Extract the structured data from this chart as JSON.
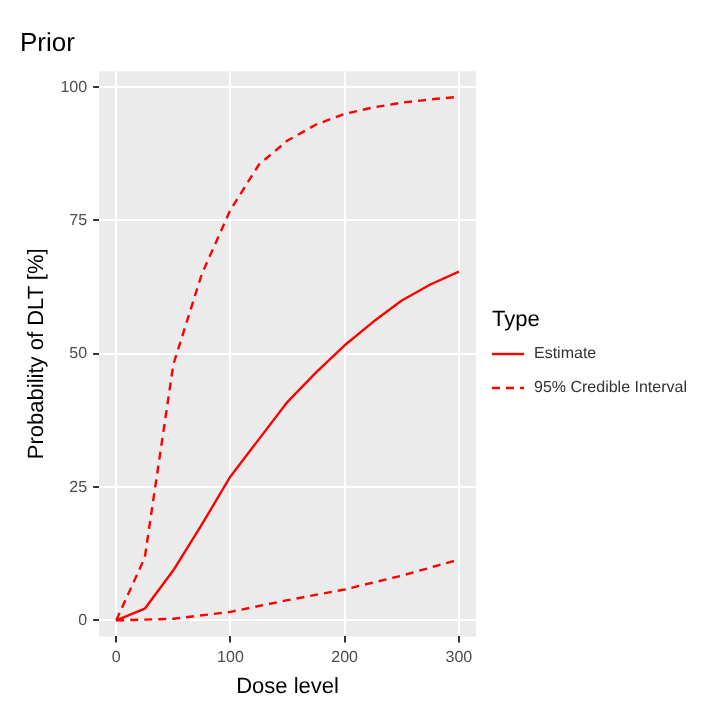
{
  "chart_data": {
    "type": "line",
    "title": "Prior",
    "xlabel": "Dose level",
    "ylabel": "Probability of DLT [%]",
    "legend_title": "Type",
    "legend": "right",
    "grid": true,
    "marker": "none",
    "xlim": [
      -15,
      315
    ],
    "xticks": [
      0,
      100,
      200,
      300
    ],
    "ylim": [
      -3,
      103
    ],
    "yticks": [
      0,
      25,
      50,
      75,
      100
    ],
    "series": [
      {
        "name": "Estimate",
        "color": "#ff0000",
        "line_style": "solid",
        "x": [
          0,
          25,
          50,
          75,
          100,
          125,
          150,
          175,
          200,
          225,
          250,
          275,
          300
        ],
        "values": [
          0,
          2.2,
          9.4,
          18,
          27,
          34,
          41,
          46.5,
          51.6,
          56,
          60,
          63,
          65.4
        ]
      },
      {
        "name": "95% Credible Interval",
        "color": "#ff0000",
        "line_style": "dashed",
        "x": [
          0,
          25,
          50,
          75,
          100,
          125,
          150,
          175,
          200,
          225,
          250,
          275,
          300,
          null,
          0,
          50,
          100,
          150,
          200,
          250,
          300
        ],
        "values": [
          0,
          11.8,
          48,
          65,
          77,
          85.5,
          90,
          93,
          95,
          96.2,
          97.1,
          97.7,
          98.2,
          null,
          0,
          0.3,
          1.6,
          3.8,
          5.8,
          8.4,
          11.4
        ]
      }
    ]
  }
}
